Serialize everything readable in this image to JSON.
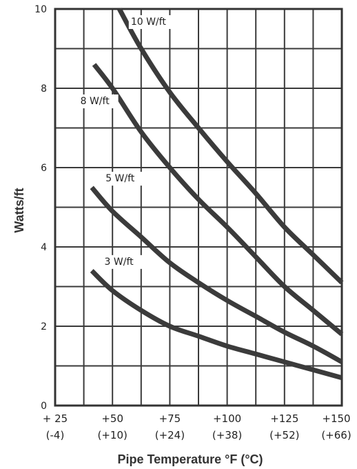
{
  "chart_data": {
    "type": "line",
    "title": "",
    "xlabel": "Pipe Temperature °F (°C)",
    "ylabel": "Watts/ft",
    "xlim": [
      25,
      150
    ],
    "ylim": [
      0,
      10
    ],
    "grid": true,
    "x_ticks": [
      {
        "value": 25,
        "f": "+ 25",
        "c": "(-4)"
      },
      {
        "value": 50,
        "f": "+50",
        "c": "(+10)"
      },
      {
        "value": 75,
        "f": "+75",
        "c": "(+24)"
      },
      {
        "value": 100,
        "f": "+100",
        "c": "(+38)"
      },
      {
        "value": 125,
        "f": "+125",
        "c": "(+52)"
      },
      {
        "value": 150,
        "f": "+150",
        "c": "(+66)"
      }
    ],
    "y_ticks": [
      {
        "value": 0,
        "label": "0"
      },
      {
        "value": 2,
        "label": "2"
      },
      {
        "value": 4,
        "label": "4"
      },
      {
        "value": 6,
        "label": "6"
      },
      {
        "value": 8,
        "label": "8"
      },
      {
        "value": 10,
        "label": "10"
      }
    ],
    "series": [
      {
        "name": "3 W/ft",
        "x": [
          41,
          50,
          62.5,
          75,
          87.5,
          100,
          112.5,
          125,
          137.5,
          150
        ],
        "y": [
          3.4,
          2.9,
          2.4,
          2.0,
          1.75,
          1.5,
          1.3,
          1.1,
          0.9,
          0.7
        ]
      },
      {
        "name": "5 W/ft",
        "x": [
          41,
          50,
          62.5,
          75,
          87.5,
          100,
          112.5,
          125,
          137.5,
          150
        ],
        "y": [
          5.5,
          4.9,
          4.25,
          3.6,
          3.1,
          2.65,
          2.25,
          1.85,
          1.5,
          1.1
        ]
      },
      {
        "name": "8 W/ft",
        "x": [
          42,
          50,
          62.5,
          75,
          87.5,
          100,
          112.5,
          125,
          137.5,
          150
        ],
        "y": [
          8.6,
          8.0,
          6.9,
          6.0,
          5.2,
          4.5,
          3.75,
          3.0,
          2.4,
          1.8
        ]
      },
      {
        "name": "10 W/ft",
        "x": [
          53,
          62.5,
          75,
          87.5,
          100,
          112.5,
          125,
          137.5,
          150
        ],
        "y": [
          10.0,
          9.0,
          7.9,
          7.0,
          6.15,
          5.35,
          4.5,
          3.8,
          3.1
        ]
      }
    ]
  }
}
